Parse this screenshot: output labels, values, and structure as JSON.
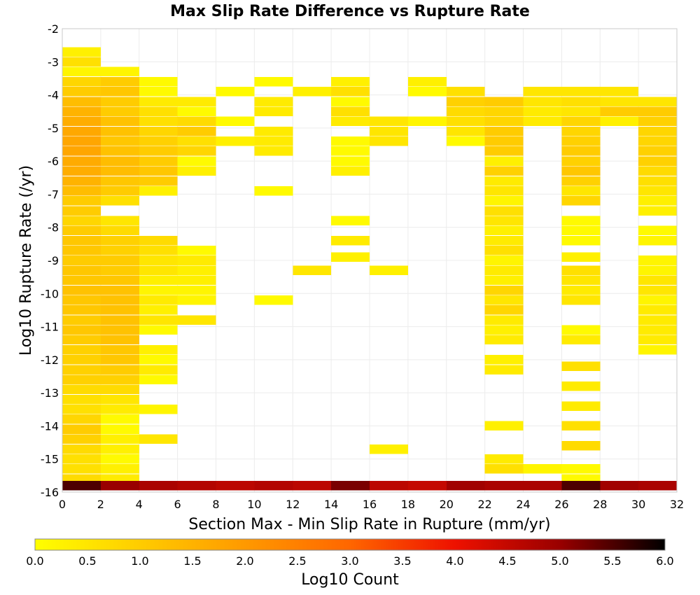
{
  "chart_data": {
    "type": "heatmap",
    "title": "Max Slip Rate Difference vs Rupture Rate",
    "xlabel": "Section Max - Min Slip Rate in Rupture (mm/yr)",
    "ylabel": "Log10 Rupture Rate (/yr)",
    "colorbar_label": "Log10 Count",
    "xlim": [
      0,
      32
    ],
    "ylim": [
      -16,
      -2
    ],
    "x_ticks": [
      "0",
      "2",
      "4",
      "6",
      "8",
      "10",
      "12",
      "14",
      "16",
      "18",
      "20",
      "22",
      "24",
      "26",
      "28",
      "30",
      "32"
    ],
    "y_ticks": [
      "-2",
      "-3",
      "-4",
      "-5",
      "-6",
      "-7",
      "-8",
      "-9",
      "-10",
      "-11",
      "-12",
      "-13",
      "-14",
      "-15",
      "-16"
    ],
    "colorbar_range": [
      0.0,
      6.0
    ],
    "colorbar_ticks": [
      "0.0",
      "0.5",
      "1.0",
      "1.5",
      "2.0",
      "2.5",
      "3.0",
      "3.5",
      "4.0",
      "4.5",
      "5.0",
      "5.5",
      "6.0"
    ],
    "colorscale": [
      "#ffff00",
      "#ffcc00",
      "#ff9900",
      "#ff6600",
      "#ee1100",
      "#990000",
      "#000000"
    ],
    "grid": true,
    "x_bin_width": 2,
    "y_bin_height": 0.2857,
    "columns": [
      {
        "x": 1,
        "cells": [
          [
            -2.7,
            0.3
          ],
          [
            -3.0,
            0.6
          ],
          [
            -3.3,
            0.2
          ],
          [
            -3.6,
            0.8
          ],
          [
            -3.9,
            1.0
          ],
          [
            -4.2,
            1.3
          ],
          [
            -4.5,
            1.5
          ],
          [
            -4.8,
            1.6
          ],
          [
            -5.1,
            1.7
          ],
          [
            -5.4,
            1.75
          ],
          [
            -5.7,
            1.75
          ],
          [
            -6.0,
            1.65
          ],
          [
            -6.3,
            1.6
          ],
          [
            -6.6,
            1.5
          ],
          [
            -6.9,
            1.3
          ],
          [
            -7.2,
            1.0
          ],
          [
            -7.5,
            1.0
          ],
          [
            -7.8,
            0.8
          ],
          [
            -8.1,
            1.0
          ],
          [
            -8.4,
            1.1
          ],
          [
            -8.7,
            1.1
          ],
          [
            -9.0,
            1.0
          ],
          [
            -9.3,
            1.1
          ],
          [
            -9.6,
            1.1
          ],
          [
            -9.9,
            1.2
          ],
          [
            -10.2,
            1.1
          ],
          [
            -10.5,
            1.1
          ],
          [
            -10.8,
            1.0
          ],
          [
            -11.1,
            1.1
          ],
          [
            -11.4,
            1.0
          ],
          [
            -11.7,
            0.9
          ],
          [
            -12.0,
            0.9
          ],
          [
            -12.3,
            0.9
          ],
          [
            -12.6,
            0.9
          ],
          [
            -12.9,
            0.7
          ],
          [
            -13.2,
            0.6
          ],
          [
            -13.5,
            0.6
          ],
          [
            -13.8,
            0.8
          ],
          [
            -14.1,
            1.0
          ],
          [
            -14.4,
            0.9
          ],
          [
            -14.7,
            0.7
          ],
          [
            -15.0,
            0.6
          ],
          [
            -15.3,
            0.6
          ],
          [
            -15.6,
            0.7
          ],
          [
            -15.8,
            5.5
          ]
        ]
      },
      {
        "x": 3,
        "cells": [
          [
            -3.3,
            0.2
          ],
          [
            -3.6,
            1.0
          ],
          [
            -3.9,
            1.1
          ],
          [
            -4.2,
            1.0
          ],
          [
            -4.5,
            1.0
          ],
          [
            -4.8,
            1.2
          ],
          [
            -5.1,
            1.2
          ],
          [
            -5.4,
            1.1
          ],
          [
            -5.7,
            1.2
          ],
          [
            -6.0,
            1.3
          ],
          [
            -6.3,
            1.3
          ],
          [
            -6.6,
            1.1
          ],
          [
            -6.9,
            1.0
          ],
          [
            -7.2,
            0.6
          ],
          [
            -7.8,
            0.5
          ],
          [
            -8.1,
            0.7
          ],
          [
            -8.4,
            0.9
          ],
          [
            -8.7,
            0.9
          ],
          [
            -9.0,
            1.0
          ],
          [
            -9.3,
            1.0
          ],
          [
            -9.6,
            1.1
          ],
          [
            -9.9,
            1.2
          ],
          [
            -10.2,
            1.2
          ],
          [
            -10.5,
            1.2
          ],
          [
            -10.8,
            1.2
          ],
          [
            -11.1,
            1.2
          ],
          [
            -11.4,
            1.2
          ],
          [
            -11.7,
            1.1
          ],
          [
            -12.0,
            1.1
          ],
          [
            -12.3,
            1.0
          ],
          [
            -12.6,
            0.9
          ],
          [
            -12.9,
            0.7
          ],
          [
            -13.2,
            0.5
          ],
          [
            -13.5,
            0.4
          ],
          [
            -13.8,
            0.1
          ],
          [
            -14.1,
            0.1
          ],
          [
            -14.4,
            0.3
          ],
          [
            -14.7,
            0.3
          ],
          [
            -15.0,
            0.1
          ],
          [
            -15.3,
            0.3
          ],
          [
            -15.6,
            0.4
          ],
          [
            -15.8,
            5.0
          ]
        ]
      },
      {
        "x": 5,
        "cells": [
          [
            -3.6,
            0.1
          ],
          [
            -3.9,
            0.1
          ],
          [
            -4.2,
            0.4
          ],
          [
            -4.5,
            0.6
          ],
          [
            -4.8,
            0.6
          ],
          [
            -5.1,
            0.8
          ],
          [
            -5.4,
            0.9
          ],
          [
            -5.7,
            1.0
          ],
          [
            -6.0,
            1.0
          ],
          [
            -6.3,
            1.1
          ],
          [
            -6.6,
            1.0
          ],
          [
            -6.9,
            0.3
          ],
          [
            -8.4,
            0.7
          ],
          [
            -8.7,
            0.6
          ],
          [
            -9.0,
            0.5
          ],
          [
            -9.3,
            0.5
          ],
          [
            -9.6,
            0.3
          ],
          [
            -9.9,
            0.2
          ],
          [
            -10.2,
            0.4
          ],
          [
            -10.5,
            0.3
          ],
          [
            -10.8,
            0.5
          ],
          [
            -11.1,
            0.1
          ],
          [
            -11.7,
            0.3
          ],
          [
            -12.0,
            0.1
          ],
          [
            -12.3,
            0.4
          ],
          [
            -12.6,
            0.1
          ],
          [
            -13.5,
            0.2
          ],
          [
            -14.4,
            0.5
          ],
          [
            -15.8,
            4.8
          ]
        ]
      },
      {
        "x": 7,
        "cells": [
          [
            -4.2,
            0.4
          ],
          [
            -4.5,
            0.1
          ],
          [
            -4.8,
            0.7
          ],
          [
            -5.1,
            1.0
          ],
          [
            -5.4,
            0.6
          ],
          [
            -5.7,
            0.8
          ],
          [
            -6.0,
            0.1
          ],
          [
            -6.3,
            0.3
          ],
          [
            -8.7,
            0.1
          ],
          [
            -9.0,
            0.4
          ],
          [
            -9.3,
            0.3
          ],
          [
            -9.6,
            0.3
          ],
          [
            -9.9,
            0.2
          ],
          [
            -10.2,
            0.2
          ],
          [
            -10.8,
            0.5
          ],
          [
            -15.8,
            4.7
          ]
        ]
      },
      {
        "x": 9,
        "cells": [
          [
            -3.9,
            0.1
          ],
          [
            -4.8,
            0.1
          ],
          [
            -5.4,
            0.3
          ],
          [
            -15.8,
            4.6
          ]
        ]
      },
      {
        "x": 11,
        "cells": [
          [
            -3.6,
            0.1
          ],
          [
            -4.2,
            0.4
          ],
          [
            -4.5,
            0.4
          ],
          [
            -5.1,
            0.4
          ],
          [
            -5.4,
            0.4
          ],
          [
            -5.7,
            0.4
          ],
          [
            -6.9,
            0.1
          ],
          [
            -10.2,
            0.1
          ],
          [
            -15.8,
            4.7
          ]
        ]
      },
      {
        "x": 13,
        "cells": [
          [
            -3.9,
            0.3
          ],
          [
            -9.3,
            0.5
          ],
          [
            -15.8,
            4.6
          ]
        ]
      },
      {
        "x": 15,
        "cells": [
          [
            -3.6,
            0.3
          ],
          [
            -3.9,
            0.6
          ],
          [
            -4.2,
            0.1
          ],
          [
            -4.5,
            0.6
          ],
          [
            -4.8,
            0.4
          ],
          [
            -5.4,
            0.1
          ],
          [
            -5.7,
            0.1
          ],
          [
            -6.0,
            0.1
          ],
          [
            -6.3,
            0.3
          ],
          [
            -7.8,
            0.1
          ],
          [
            -8.4,
            0.4
          ],
          [
            -8.9,
            0.3
          ],
          [
            -15.8,
            5.2
          ]
        ]
      },
      {
        "x": 17,
        "cells": [
          [
            -4.8,
            0.5
          ],
          [
            -5.1,
            0.5
          ],
          [
            -5.4,
            0.5
          ],
          [
            -9.3,
            0.3
          ],
          [
            -14.7,
            0.3
          ],
          [
            -15.8,
            4.6
          ]
        ]
      },
      {
        "x": 19,
        "cells": [
          [
            -3.6,
            0.3
          ],
          [
            -3.9,
            0.1
          ],
          [
            -4.8,
            0.2
          ],
          [
            -15.8,
            4.5
          ]
        ]
      },
      {
        "x": 21,
        "cells": [
          [
            -3.9,
            0.6
          ],
          [
            -4.2,
            0.9
          ],
          [
            -4.5,
            0.7
          ],
          [
            -4.8,
            0.6
          ],
          [
            -5.1,
            0.5
          ],
          [
            -5.4,
            0.1
          ],
          [
            -15.8,
            4.9
          ]
        ]
      },
      {
        "x": 23,
        "cells": [
          [
            -4.2,
            1.0
          ],
          [
            -4.5,
            0.8
          ],
          [
            -4.8,
            0.8
          ],
          [
            -5.1,
            1.0
          ],
          [
            -5.4,
            1.0
          ],
          [
            -5.7,
            1.0
          ],
          [
            -6.0,
            0.3
          ],
          [
            -6.3,
            0.9
          ],
          [
            -6.6,
            0.4
          ],
          [
            -6.9,
            0.5
          ],
          [
            -7.2,
            0.2
          ],
          [
            -7.5,
            0.6
          ],
          [
            -7.8,
            0.5
          ],
          [
            -8.1,
            0.3
          ],
          [
            -8.4,
            0.4
          ],
          [
            -8.7,
            0.6
          ],
          [
            -9.0,
            0.2
          ],
          [
            -9.3,
            0.4
          ],
          [
            -9.6,
            0.3
          ],
          [
            -9.9,
            0.8
          ],
          [
            -10.2,
            0.5
          ],
          [
            -10.5,
            0.8
          ],
          [
            -10.8,
            0.4
          ],
          [
            -11.1,
            0.3
          ],
          [
            -11.4,
            0.4
          ],
          [
            -12.0,
            0.3
          ],
          [
            -12.3,
            0.4
          ],
          [
            -14.0,
            0.3
          ],
          [
            -15.0,
            0.4
          ],
          [
            -15.3,
            0.6
          ],
          [
            -15.8,
            4.8
          ]
        ]
      },
      {
        "x": 25,
        "cells": [
          [
            -3.9,
            0.5
          ],
          [
            -4.2,
            0.5
          ],
          [
            -4.5,
            0.4
          ],
          [
            -4.8,
            0.4
          ],
          [
            -15.3,
            0.2
          ],
          [
            -15.8,
            4.8
          ]
        ]
      },
      {
        "x": 27,
        "cells": [
          [
            -3.9,
            0.5
          ],
          [
            -4.2,
            0.6
          ],
          [
            -4.5,
            0.5
          ],
          [
            -4.8,
            0.8
          ],
          [
            -5.1,
            0.8
          ],
          [
            -5.4,
            0.9
          ],
          [
            -5.7,
            1.0
          ],
          [
            -6.0,
            0.9
          ],
          [
            -6.3,
            1.1
          ],
          [
            -6.6,
            0.9
          ],
          [
            -6.9,
            0.5
          ],
          [
            -7.2,
            0.8
          ],
          [
            -7.8,
            0.1
          ],
          [
            -8.1,
            0.1
          ],
          [
            -8.4,
            0.1
          ],
          [
            -8.9,
            0.3
          ],
          [
            -9.3,
            0.6
          ],
          [
            -9.6,
            0.5
          ],
          [
            -9.9,
            0.4
          ],
          [
            -10.2,
            0.5
          ],
          [
            -11.1,
            0.1
          ],
          [
            -11.4,
            0.4
          ],
          [
            -12.2,
            0.6
          ],
          [
            -12.8,
            0.4
          ],
          [
            -13.4,
            0.4
          ],
          [
            -14.0,
            0.6
          ],
          [
            -14.6,
            0.7
          ],
          [
            -15.3,
            0.1
          ],
          [
            -15.6,
            0.1
          ],
          [
            -15.8,
            5.5
          ]
        ]
      },
      {
        "x": 29,
        "cells": [
          [
            -3.9,
            0.5
          ],
          [
            -4.2,
            0.5
          ],
          [
            -4.5,
            1.0
          ],
          [
            -4.8,
            0.3
          ],
          [
            -15.8,
            4.9
          ]
        ]
      },
      {
        "x": 31,
        "cells": [
          [
            -4.2,
            0.5
          ],
          [
            -4.5,
            1.0
          ],
          [
            -4.8,
            0.9
          ],
          [
            -5.1,
            0.8
          ],
          [
            -5.4,
            0.8
          ],
          [
            -5.7,
            0.9
          ],
          [
            -6.0,
            0.9
          ],
          [
            -6.3,
            0.7
          ],
          [
            -6.6,
            0.6
          ],
          [
            -6.9,
            0.5
          ],
          [
            -7.2,
            0.3
          ],
          [
            -7.5,
            0.3
          ],
          [
            -8.1,
            0.1
          ],
          [
            -8.4,
            0.2
          ],
          [
            -9.0,
            0.2
          ],
          [
            -9.3,
            0.2
          ],
          [
            -9.6,
            0.5
          ],
          [
            -9.9,
            0.5
          ],
          [
            -10.2,
            0.2
          ],
          [
            -10.5,
            0.4
          ],
          [
            -10.8,
            0.4
          ],
          [
            -11.1,
            0.4
          ],
          [
            -11.4,
            0.4
          ],
          [
            -11.7,
            0.2
          ],
          [
            -15.8,
            4.8
          ]
        ]
      }
    ]
  }
}
